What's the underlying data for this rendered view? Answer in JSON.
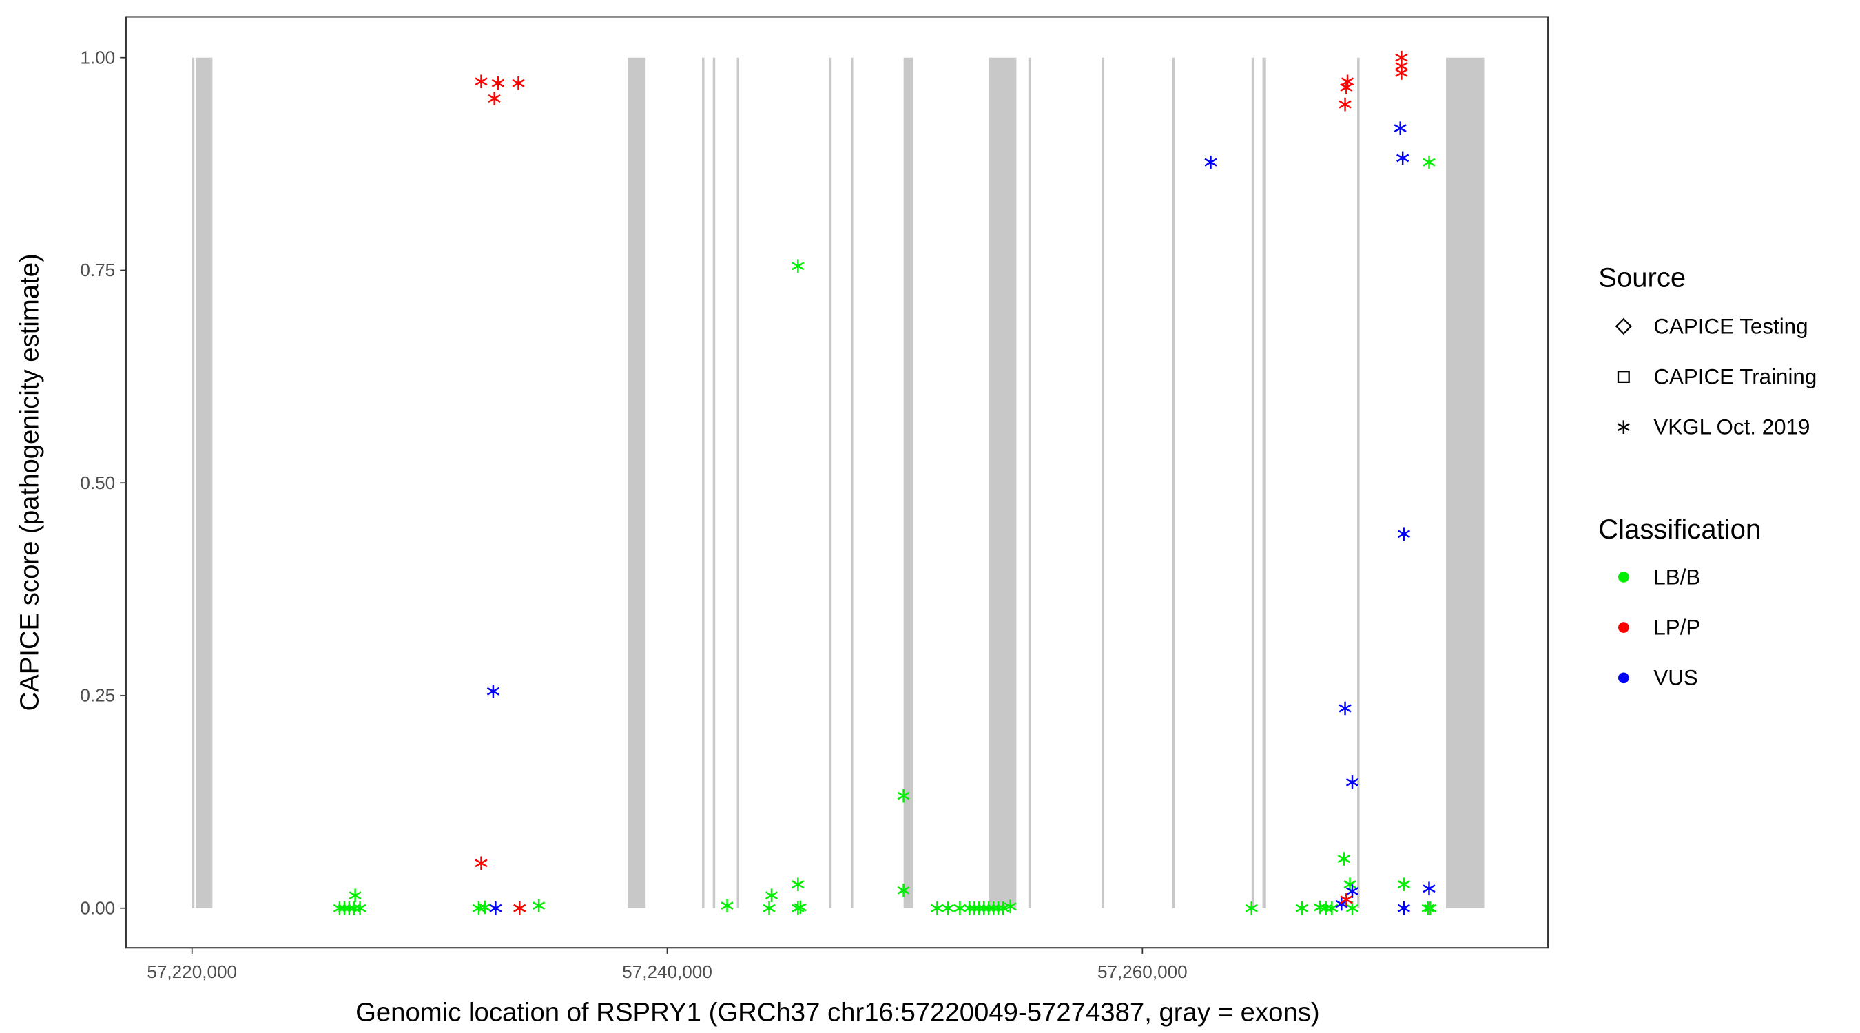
{
  "chart_data": {
    "type": "scatter",
    "xlabel": "Genomic location of RSPRY1 (GRCh37 chr16:57220049-57274387, gray = exons)",
    "ylabel": "CAPICE score (pathogenicity estimate)",
    "xlim": [
      57219000,
      57280000
    ],
    "ylim": [
      -0.047,
      1.048
    ],
    "x_ticks": [
      57220000,
      57240000,
      57260000
    ],
    "x_tick_labels": [
      "57,220,000",
      "57,240,000",
      "57,260,000"
    ],
    "y_ticks": [
      0,
      0.25,
      0.5,
      0.75,
      1.0
    ],
    "y_tick_labels": [
      "0.00",
      "0.25",
      "0.50",
      "0.75",
      "1.00"
    ],
    "grid": false,
    "exons": [
      [
        57220000,
        57220101
      ],
      [
        57220152,
        57220859
      ],
      [
        57238333,
        57239091
      ],
      [
        57241465,
        57241566
      ],
      [
        57241919,
        57242020
      ],
      [
        57242929,
        57243030
      ],
      [
        57246818,
        57246919
      ],
      [
        57247727,
        57247828
      ],
      [
        57249949,
        57250354
      ],
      [
        57253535,
        57254697
      ],
      [
        57255202,
        57255303
      ],
      [
        57258283,
        57258384
      ],
      [
        57261263,
        57261364
      ],
      [
        57264596,
        57264697
      ],
      [
        57265051,
        57265202
      ],
      [
        57269040,
        57269141
      ],
      [
        57272778,
        57274387
      ]
    ],
    "legend_position": "right",
    "legend": {
      "source_title": "Source",
      "sources": [
        {
          "key": "testing",
          "label": "CAPICE Testing",
          "shape": "diamond"
        },
        {
          "key": "training",
          "label": "CAPICE Training",
          "shape": "square"
        },
        {
          "key": "vkgl",
          "label": "VKGL Oct. 2019",
          "shape": "asterisk"
        }
      ],
      "class_title": "Classification",
      "classes": [
        {
          "key": "LB/B",
          "label": "LB/B",
          "color": "#00ee00"
        },
        {
          "key": "LP/P",
          "label": "LP/P",
          "color": "#ff0000"
        },
        {
          "key": "VUS",
          "label": "VUS",
          "color": "#0000ff"
        }
      ]
    },
    "points": [
      {
        "x": 57226212,
        "y": 0,
        "s": "training",
        "c": "LB/B"
      },
      {
        "x": 57226414,
        "y": 0,
        "s": "training",
        "c": "LB/B"
      },
      {
        "x": 57226616,
        "y": 0,
        "s": "training",
        "c": "LB/B"
      },
      {
        "x": 57226818,
        "y": 0,
        "s": "training",
        "c": "LB/B"
      },
      {
        "x": 57226868,
        "y": 0.015,
        "s": "training",
        "c": "LB/B"
      },
      {
        "x": 57227070,
        "y": 0,
        "s": "training",
        "c": "LB/B"
      },
      {
        "x": 57232171,
        "y": 0.972,
        "s": "training",
        "c": "LP/P"
      },
      {
        "x": 57232878,
        "y": 0.97,
        "s": "training",
        "c": "LP/P"
      },
      {
        "x": 57232726,
        "y": 0.952,
        "s": "training",
        "c": "LP/P"
      },
      {
        "x": 57233736,
        "y": 0.97,
        "s": "training",
        "c": "LP/P"
      },
      {
        "x": 57232171,
        "y": 0.053,
        "s": "vkgl",
        "c": "LP/P"
      },
      {
        "x": 57232676,
        "y": 0.255,
        "s": "vkgl",
        "c": "VUS"
      },
      {
        "x": 57232070,
        "y": 0,
        "s": "training",
        "c": "LB/B"
      },
      {
        "x": 57232322,
        "y": 0.001,
        "s": "vkgl",
        "c": "LB/B"
      },
      {
        "x": 57232777,
        "y": 0,
        "s": "vkgl",
        "c": "VUS"
      },
      {
        "x": 57233787,
        "y": 0,
        "s": "training",
        "c": "LB/B"
      },
      {
        "x": 57233787,
        "y": 0,
        "s": "vkgl",
        "c": "LP/P"
      },
      {
        "x": 57234595,
        "y": 0.003,
        "s": "training",
        "c": "LB/B"
      },
      {
        "x": 57242523,
        "y": 0.003,
        "s": "training",
        "c": "LB/B"
      },
      {
        "x": 57244291,
        "y": 0,
        "s": "training",
        "c": "LB/B"
      },
      {
        "x": 57244392,
        "y": 0.015,
        "s": "training",
        "c": "LB/B"
      },
      {
        "x": 57245503,
        "y": 0.755,
        "s": "training",
        "c": "LB/B"
      },
      {
        "x": 57245503,
        "y": 0.028,
        "s": "training",
        "c": "LB/B"
      },
      {
        "x": 57245503,
        "y": 0,
        "s": "training",
        "c": "LB/B"
      },
      {
        "x": 57245604,
        "y": 0.001,
        "s": "training",
        "c": "LB/B"
      },
      {
        "x": 57249947,
        "y": 0.132,
        "s": "vkgl",
        "c": "LB/B"
      },
      {
        "x": 57249947,
        "y": 0.021,
        "s": "vkgl",
        "c": "LB/B"
      },
      {
        "x": 57251361,
        "y": 0,
        "s": "training",
        "c": "LB/B"
      },
      {
        "x": 57251815,
        "y": 0,
        "s": "training",
        "c": "LB/B"
      },
      {
        "x": 57252320,
        "y": 0,
        "s": "training",
        "c": "LB/B"
      },
      {
        "x": 57252724,
        "y": 0,
        "s": "training",
        "c": "LB/B"
      },
      {
        "x": 57252926,
        "y": 0,
        "s": "training",
        "c": "LB/B"
      },
      {
        "x": 57253128,
        "y": 0,
        "s": "training",
        "c": "LB/B"
      },
      {
        "x": 57253330,
        "y": 0,
        "s": "training",
        "c": "LB/B"
      },
      {
        "x": 57253532,
        "y": 0,
        "s": "training",
        "c": "LB/B"
      },
      {
        "x": 57253734,
        "y": 0,
        "s": "training",
        "c": "LB/B"
      },
      {
        "x": 57253936,
        "y": 0,
        "s": "training",
        "c": "LB/B"
      },
      {
        "x": 57254138,
        "y": 0,
        "s": "training",
        "c": "LB/B"
      },
      {
        "x": 57254441,
        "y": 0.002,
        "s": "training",
        "c": "LB/B"
      },
      {
        "x": 57262875,
        "y": 0.877,
        "s": "vkgl",
        "c": "VUS"
      },
      {
        "x": 57264592,
        "y": 0,
        "s": "training",
        "c": "LB/B"
      },
      {
        "x": 57266713,
        "y": 0,
        "s": "vkgl",
        "c": "LB/B"
      },
      {
        "x": 57267470,
        "y": 0.001,
        "s": "training",
        "c": "LB/B"
      },
      {
        "x": 57267723,
        "y": 0,
        "s": "training",
        "c": "LB/B"
      },
      {
        "x": 57267975,
        "y": 0,
        "s": "training",
        "c": "LB/B"
      },
      {
        "x": 57268480,
        "y": 0.058,
        "s": "training",
        "c": "LB/B"
      },
      {
        "x": 57268733,
        "y": 0.028,
        "s": "training",
        "c": "LB/B"
      },
      {
        "x": 57268834,
        "y": 0,
        "s": "training",
        "c": "LB/B"
      },
      {
        "x": 57268379,
        "y": 0.005,
        "s": "vkgl",
        "c": "VUS"
      },
      {
        "x": 57268834,
        "y": 0.02,
        "s": "vkgl",
        "c": "VUS"
      },
      {
        "x": 57268531,
        "y": 0.235,
        "s": "vkgl",
        "c": "VUS"
      },
      {
        "x": 57268834,
        "y": 0.148,
        "s": "vkgl",
        "c": "VUS"
      },
      {
        "x": 57268581,
        "y": 0.01,
        "s": "vkgl",
        "c": "LP/P"
      },
      {
        "x": 57268581,
        "y": 0.965,
        "s": "vkgl",
        "c": "LP/P"
      },
      {
        "x": 57268632,
        "y": 0.972,
        "s": "testing",
        "c": "LP/P"
      },
      {
        "x": 57268531,
        "y": 0.945,
        "s": "training",
        "c": "LP/P"
      },
      {
        "x": 57270904,
        "y": 1.0,
        "s": "training",
        "c": "LP/P"
      },
      {
        "x": 57270904,
        "y": 0.99,
        "s": "training",
        "c": "LP/P"
      },
      {
        "x": 57270904,
        "y": 0.982,
        "s": "training",
        "c": "LP/P"
      },
      {
        "x": 57270854,
        "y": 0.917,
        "s": "vkgl",
        "c": "VUS"
      },
      {
        "x": 57270955,
        "y": 0.882,
        "s": "vkgl",
        "c": "VUS"
      },
      {
        "x": 57271005,
        "y": 0.44,
        "s": "vkgl",
        "c": "VUS"
      },
      {
        "x": 57271005,
        "y": 0,
        "s": "vkgl",
        "c": "VUS"
      },
      {
        "x": 57272066,
        "y": 0.023,
        "s": "vkgl",
        "c": "VUS"
      },
      {
        "x": 57272066,
        "y": 0.877,
        "s": "testing",
        "c": "LB/B"
      },
      {
        "x": 57271005,
        "y": 0.028,
        "s": "training",
        "c": "LB/B"
      },
      {
        "x": 57272015,
        "y": 0,
        "s": "training",
        "c": "LB/B"
      },
      {
        "x": 57272116,
        "y": 0,
        "s": "training",
        "c": "LB/B"
      }
    ]
  }
}
